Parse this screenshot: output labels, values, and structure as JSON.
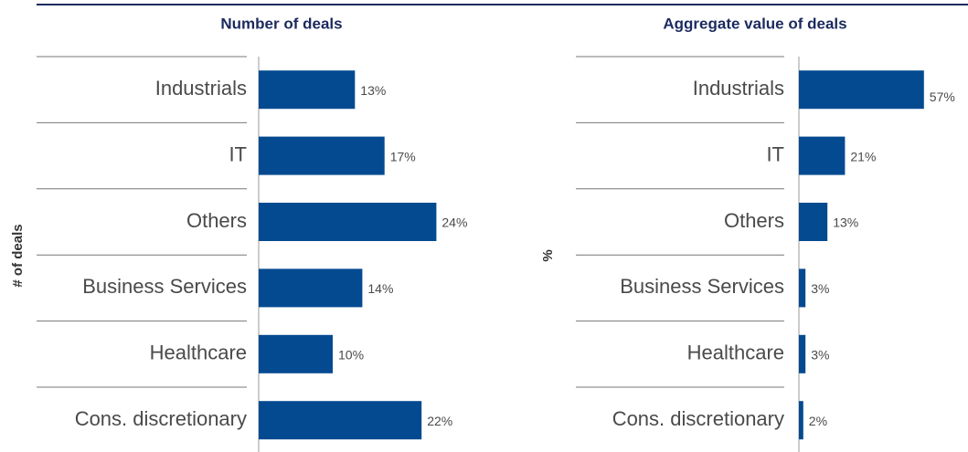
{
  "chart_data": [
    {
      "type": "bar",
      "orientation": "horizontal",
      "title": "Number of deals",
      "ylabel": "# of deals",
      "categories": [
        "Industrials",
        "IT",
        "Others",
        "Business Services",
        "Healthcare",
        "Cons. discretionary"
      ],
      "values": [
        13,
        17,
        24,
        14,
        10,
        22
      ],
      "value_labels": [
        "13%",
        "17%",
        "24%",
        "14%",
        "10%",
        "22%"
      ],
      "color": "#034a91",
      "xlim": [
        0,
        30
      ]
    },
    {
      "type": "bar",
      "orientation": "horizontal",
      "title": "Aggregate value of deals",
      "ylabel": "%",
      "categories": [
        "Industrials",
        "IT",
        "Others",
        "Business Services",
        "Healthcare",
        "Cons. discretionary"
      ],
      "values": [
        57,
        21,
        13,
        3,
        3,
        2
      ],
      "value_labels": [
        "57%",
        "21%",
        "13%",
        "3%",
        "3%",
        "2%"
      ],
      "color": "#034a91",
      "xlim": [
        0,
        60
      ]
    }
  ]
}
